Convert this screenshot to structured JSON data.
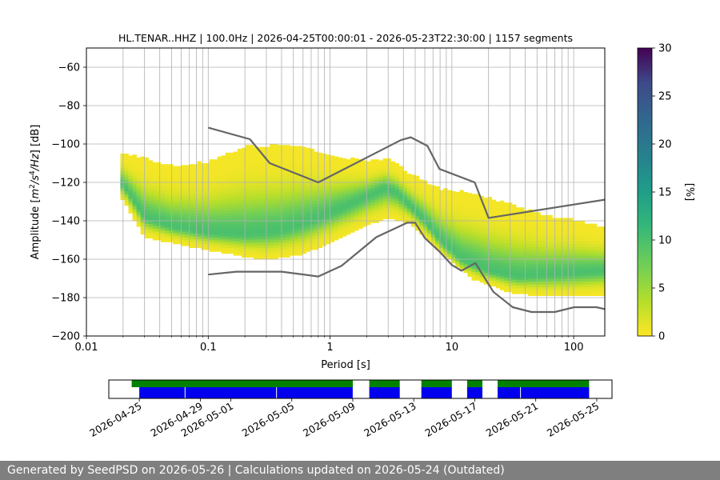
{
  "chart_data": [
    {
      "type": "heatmap",
      "title": "HL.TENAR..HHZ | 100.0Hz | 2026-04-25T00:00:01 - 2026-05-23T22:30:00 | 1157 segments",
      "xlabel": "Period [s]",
      "ylabel": "Amplitude [m²/s⁴/Hz] [dB]",
      "xscale": "log",
      "xlim": [
        0.01,
        180
      ],
      "ylim": [
        -200,
        -50
      ],
      "xticks": [
        {
          "v": 0.01,
          "label": "0.01"
        },
        {
          "v": 0.1,
          "label": "0.1"
        },
        {
          "v": 1,
          "label": "1"
        },
        {
          "v": 10,
          "label": "10"
        },
        {
          "v": 100,
          "label": "100"
        }
      ],
      "yticks": [
        -200,
        -180,
        -160,
        -140,
        -120,
        -100,
        -80,
        -60
      ],
      "grid": true,
      "mode_curve": [
        [
          0.02,
          -121
        ],
        [
          0.03,
          -138
        ],
        [
          0.05,
          -143
        ],
        [
          0.1,
          -146
        ],
        [
          0.2,
          -147
        ],
        [
          0.4,
          -145
        ],
        [
          0.7,
          -140
        ],
        [
          1.0,
          -136
        ],
        [
          1.5,
          -131
        ],
        [
          2.2,
          -126
        ],
        [
          2.8,
          -123
        ],
        [
          3.5,
          -125
        ],
        [
          4.5,
          -132
        ],
        [
          6,
          -140
        ],
        [
          8,
          -150
        ],
        [
          12,
          -160
        ],
        [
          20,
          -166
        ],
        [
          35,
          -169
        ],
        [
          60,
          -168
        ],
        [
          100,
          -167
        ],
        [
          180,
          -166
        ]
      ],
      "upper_envelope": [
        [
          0.02,
          -105
        ],
        [
          0.05,
          -112
        ],
        [
          0.1,
          -110
        ],
        [
          0.2,
          -102
        ],
        [
          0.5,
          -101
        ],
        [
          1.0,
          -106
        ],
        [
          2.0,
          -110
        ],
        [
          3.0,
          -108
        ],
        [
          4.5,
          -116
        ],
        [
          8,
          -124
        ],
        [
          15,
          -126
        ],
        [
          30,
          -132
        ],
        [
          60,
          -138
        ],
        [
          100,
          -140
        ],
        [
          180,
          -144
        ]
      ],
      "lower_envelope": [
        [
          0.02,
          -129
        ],
        [
          0.03,
          -148
        ],
        [
          0.1,
          -155
        ],
        [
          0.3,
          -160
        ],
        [
          0.6,
          -157
        ],
        [
          1.0,
          -151
        ],
        [
          2.0,
          -142
        ],
        [
          3.0,
          -138
        ],
        [
          4.5,
          -141
        ],
        [
          8,
          -156
        ],
        [
          15,
          -170
        ],
        [
          30,
          -177
        ],
        [
          60,
          -179
        ],
        [
          100,
          -179
        ],
        [
          180,
          -178
        ]
      ],
      "nlnm": [
        [
          0.1,
          -168
        ],
        [
          0.17,
          -166.5
        ],
        [
          0.4,
          -166.5
        ],
        [
          0.8,
          -169
        ],
        [
          1.24,
          -163.5
        ],
        [
          2.4,
          -148.5
        ],
        [
          4.3,
          -141
        ],
        [
          5.0,
          -141
        ],
        [
          6.0,
          -149
        ],
        [
          7.9,
          -156
        ],
        [
          10,
          -163
        ],
        [
          12,
          -166
        ],
        [
          15.6,
          -162
        ],
        [
          21.9,
          -177
        ],
        [
          31.6,
          -185
        ],
        [
          45,
          -187.5
        ],
        [
          70,
          -187.5
        ],
        [
          101,
          -185
        ],
        [
          154,
          -185
        ],
        [
          180,
          -186
        ]
      ],
      "nhnm": [
        [
          0.1,
          -91.5
        ],
        [
          0.22,
          -97.5
        ],
        [
          0.32,
          -110
        ],
        [
          0.8,
          -120
        ],
        [
          3.8,
          -98
        ],
        [
          4.6,
          -96.5
        ],
        [
          6.3,
          -101
        ],
        [
          7.9,
          -113
        ],
        [
          15.4,
          -120
        ],
        [
          20,
          -138.5
        ],
        [
          180,
          -129
        ]
      ],
      "colorbar": {
        "label": "[%]",
        "min": 0,
        "max": 30,
        "ticks": [
          0,
          5,
          10,
          15,
          20,
          25,
          30
        ]
      }
    },
    {
      "type": "timeline",
      "xticks": [
        "2026-04-25",
        "2026-04-29",
        "2026-05-01",
        "2026-05-05",
        "2026-05-09",
        "2026-05-13",
        "2026-05-17",
        "2026-05-21",
        "2026-05-25"
      ],
      "range": [
        "2026-04-23T00:00",
        "2026-05-26T00:00"
      ],
      "green_spans": [
        [
          "2026-04-24T12:00",
          "2026-05-09T00:00"
        ],
        [
          "2026-05-10T02:00",
          "2026-05-12T02:00"
        ],
        [
          "2026-05-13T12:00",
          "2026-05-15T12:00"
        ],
        [
          "2026-05-16T12:00",
          "2026-05-17T12:00"
        ],
        [
          "2026-05-18T12:00",
          "2026-05-24T12:00"
        ]
      ],
      "blue_spans": [
        [
          "2026-04-25T00:00",
          "2026-05-09T00:00"
        ],
        [
          "2026-05-10T02:00",
          "2026-05-12T02:00"
        ],
        [
          "2026-05-13T12:00",
          "2026-05-15T12:00"
        ],
        [
          "2026-05-16T12:00",
          "2026-05-17T12:00"
        ],
        [
          "2026-05-18T12:00",
          "2026-05-24T12:00"
        ]
      ],
      "blue_breaks": [
        "2026-04-28T00:00",
        "2026-05-04T00:00",
        "2026-05-20T00:00"
      ]
    }
  ],
  "footer": "Generated by SeedPSD on 2026-05-26 | Calculations updated on 2026-05-24 (Outdated)"
}
